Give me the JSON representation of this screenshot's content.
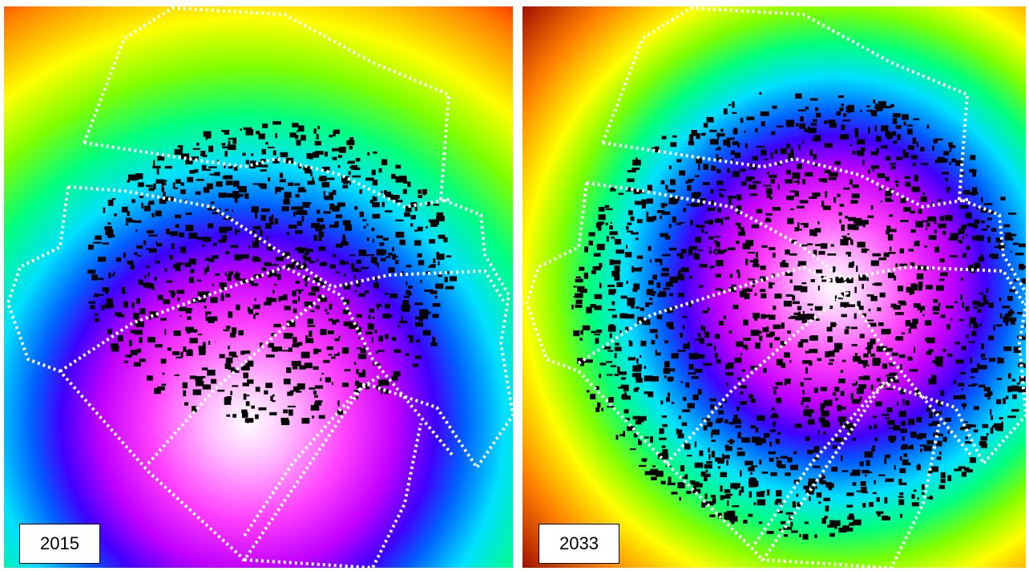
{
  "panels": [
    {
      "label": "2015"
    },
    {
      "label": "2033"
    }
  ]
}
